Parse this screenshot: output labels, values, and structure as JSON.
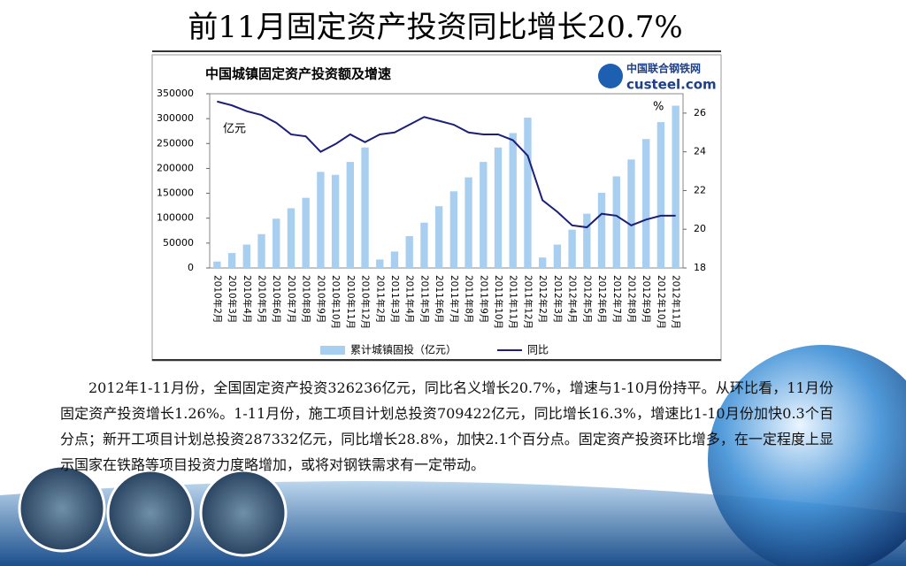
{
  "slide_title": "前11月固定资产投资同比增长20.7%",
  "paragraph": "2012年1-11月份，全国固定资产投资326236亿元，同比名义增长20.7%，增速与1-10月份持平。从环比看，11月份固定资产投资增长1.26%。1-11月份，施工项目计划总投资709422亿元，同比增长16.3%，增速比1-10月份加快0.3个百分点；新开工项目计划总投资287332亿元，同比增长28.8%，加快2.1个百分点。固定资产投资环比增多，在一定程度上显示国家在铁路等项目投资力度略增加，或将对钢铁需求有一定带动。",
  "logo": {
    "name": "中国联合钢铁网",
    "site": "custeel.com"
  },
  "chart_data": {
    "type": "bar",
    "title": "中国城镇固定资产投资额及增速",
    "y_unit": "亿元",
    "y2_unit": "%",
    "categories": [
      "2010年2月",
      "2010年3月",
      "2010年4月",
      "2010年5月",
      "2010年6月",
      "2010年7月",
      "2010年8月",
      "2010年9月",
      "2010年10月",
      "2010年11月",
      "2010年12月",
      "2011年2月",
      "2011年3月",
      "2011年4月",
      "2011年5月",
      "2011年6月",
      "2011年7月",
      "2011年8月",
      "2011年9月",
      "2011年10月",
      "2011年11月",
      "2011年12月",
      "2012年2月",
      "2012年3月",
      "2012年4月",
      "2012年5月",
      "2012年6月",
      "2012年7月",
      "2012年8月",
      "2012年9月",
      "2012年10月",
      "2012年11月"
    ],
    "series": [
      {
        "name": "累计城镇固投（亿元）",
        "type": "bar",
        "color": "#a9cff0",
        "values": [
          13000,
          30000,
          47000,
          68000,
          99000,
          120000,
          141000,
          193000,
          187000,
          213000,
          242000,
          17000,
          33000,
          64000,
          91000,
          124000,
          154000,
          182000,
          213000,
          242000,
          271000,
          302000,
          21000,
          47000,
          77000,
          109000,
          151000,
          184000,
          218000,
          259000,
          293000,
          326000
        ]
      },
      {
        "name": "同比",
        "type": "line",
        "axis": "y2",
        "color": "#1b1f78",
        "values": [
          26.6,
          26.4,
          26.1,
          25.9,
          25.5,
          24.9,
          24.8,
          24.0,
          24.4,
          24.9,
          24.5,
          24.9,
          25.0,
          25.4,
          25.8,
          25.6,
          25.4,
          25.0,
          24.9,
          24.9,
          24.6,
          23.8,
          21.5,
          20.9,
          20.2,
          20.1,
          20.8,
          20.7,
          20.2,
          20.5,
          20.7,
          20.7
        ]
      }
    ],
    "ylim": [
      0,
      350000
    ],
    "yticks": [
      0,
      50000,
      100000,
      150000,
      200000,
      250000,
      300000,
      350000
    ],
    "y2lim": [
      18,
      27
    ],
    "y2ticks": [
      18,
      20,
      22,
      24,
      26
    ],
    "legend": "bottom"
  }
}
